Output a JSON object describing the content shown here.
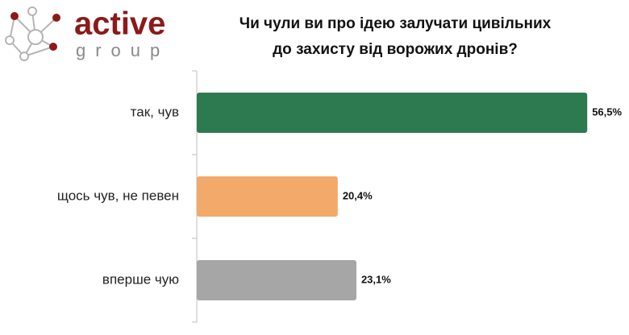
{
  "logo": {
    "name": "active",
    "subname": "group"
  },
  "chart_data": {
    "type": "barh",
    "title": [
      "Чи чули ви про ідею залучати цивільних",
      "до захисту від ворожих дронів?"
    ],
    "categories": [
      "так, чув",
      "щось чув, не певен",
      "вперше чую"
    ],
    "values": [
      56.5,
      20.4,
      23.1
    ],
    "value_labels": [
      "56,5%",
      "20,4%",
      "23,1%"
    ],
    "colors": [
      "#2e7a50",
      "#f3a96a",
      "#a6a6a6"
    ]
  }
}
